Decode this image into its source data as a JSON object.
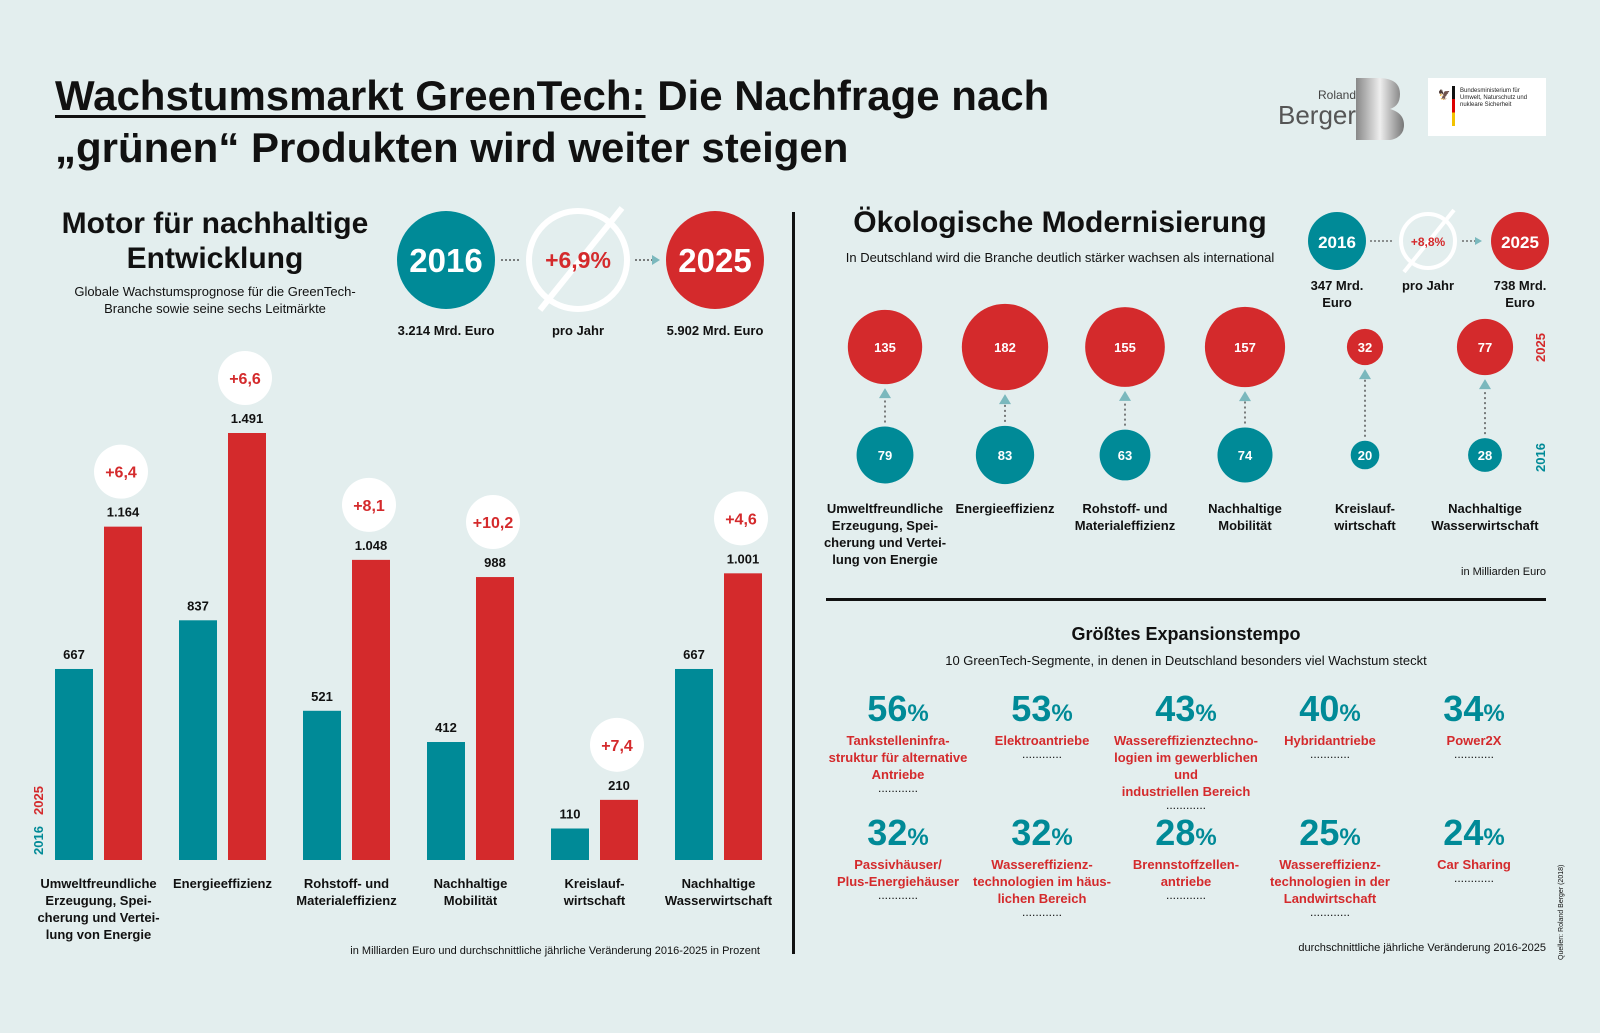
{
  "header": {
    "title_underlined": "Wachstumsmarkt GreenTech:",
    "title_rest_line1": "Die Nachfrage nach",
    "title_line2": "„grünen“ Produkten wird weiter steigen",
    "logo_roland": "Roland",
    "logo_berger": "Berger",
    "logo_ministry": "Bundesministerium für Umwelt, Naturschutz und nukleare Sicherheit"
  },
  "left": {
    "title_line1": "Motor für nachhaltige",
    "title_line2": "Entwicklung",
    "subtitle_line1": "Globale Wachstumsprognose für die GreenTech-",
    "subtitle_line2": "Branche sowie seine sechs Leitmärkte",
    "year_start": "2016",
    "year_end": "2025",
    "growth": "+6,9%",
    "value_start": "3.214 Mrd. Euro",
    "value_end": "5.902 Mrd. Euro",
    "per_year": "pro Jahr",
    "footnote": "in Milliarden Euro und durchschnittliche jährliche Veränderung 2016-2025 in Prozent",
    "axis_label_2016": "2016",
    "axis_label_2025": "2025"
  },
  "right": {
    "title": "Ökologische Modernisierung",
    "subtitle": "In Deutschland wird die Branche deutlich stärker wachsen als international",
    "year_start": "2016",
    "year_end": "2025",
    "growth": "+8,8%",
    "value_start_line1": "347 Mrd.",
    "value_start_line2": "Euro",
    "value_end_line1": "738 Mrd.",
    "value_end_line2": "Euro",
    "per_year": "pro Jahr",
    "unit_note": "in Milliarden Euro",
    "axis_label_2016": "2016",
    "axis_label_2025": "2025"
  },
  "expansion": {
    "title": "Größtes Expansionstempo",
    "subtitle": "10 GreenTech-Segmente, in denen in Deutschland besonders viel Wachstum steckt",
    "footnote": "durchschnittliche jährliche Veränderung 2016-2025",
    "items": [
      {
        "value": "56",
        "label": "Tankstelleninfra-\nstruktur für alternative\nAntriebe"
      },
      {
        "value": "53",
        "label": "Elektroantriebe"
      },
      {
        "value": "43",
        "label": "Wassereffizienztechno-\nlogien im gewerblichen und\nindustriellen Bereich"
      },
      {
        "value": "40",
        "label": "Hybridantriebe"
      },
      {
        "value": "34",
        "label": "Power2X"
      },
      {
        "value": "32",
        "label": "Passivhäuser/\nPlus-Energiehäuser"
      },
      {
        "value": "32",
        "label": "Wassereffizienz-\ntechnologien im häus-\nlichen Bereich"
      },
      {
        "value": "28",
        "label": "Brennstoffzellen-\nantriebe"
      },
      {
        "value": "25",
        "label": "Wassereffizienz-\ntechnologien in der\nLandwirtschaft"
      },
      {
        "value": "24",
        "label": "Car Sharing"
      }
    ],
    "unit": "%",
    "dots": "............"
  },
  "source": "Quellen: Roland Berger (2018)",
  "colors": {
    "teal": "#008a97",
    "red": "#d42a2c",
    "bg": "#e3eeee"
  },
  "chart_data": [
    {
      "type": "bar",
      "categories": [
        "Umweltfreundliche\nErzeugung, Spei-\ncherung und Vertei-\nlung von Energie",
        "Energieeffizienz",
        "Rohstoff- und\nMaterialeffizienz",
        "Nachhaltige\nMobilität",
        "Kreislauf-\nwirtschaft",
        "Nachhaltige\nWasserwirtschaft"
      ],
      "series": [
        {
          "name": "2016",
          "values": [
            667,
            837,
            521,
            412,
            110,
            667
          ],
          "labels": [
            "667",
            "837",
            "521",
            "412",
            "110",
            "667"
          ]
        },
        {
          "name": "2025",
          "values": [
            1164,
            1491,
            1048,
            988,
            210,
            1001
          ],
          "labels": [
            "1.164",
            "1.491",
            "1.048",
            "988",
            "210",
            "1.001"
          ]
        }
      ],
      "growth_labels": [
        "+6,4",
        "+6,6",
        "+8,1",
        "+10,2",
        "+7,4",
        "+4,6"
      ],
      "ylim": [
        0,
        1491
      ]
    },
    {
      "type": "scatter",
      "categories": [
        "Umweltfreundliche\nErzeugung, Spei-\ncherung und Vertei-\nlung von Energie",
        "Energieeffizienz",
        "Rohstoff- und\nMaterialeffizienz",
        "Nachhaltige\nMobilität",
        "Kreislauf-\nwirtschaft",
        "Nachhaltige\nWasserwirtschaft"
      ],
      "series": [
        {
          "name": "2016",
          "values": [
            79,
            83,
            63,
            74,
            20,
            28
          ]
        },
        {
          "name": "2025",
          "values": [
            135,
            182,
            155,
            157,
            32,
            77
          ]
        }
      ]
    }
  ]
}
